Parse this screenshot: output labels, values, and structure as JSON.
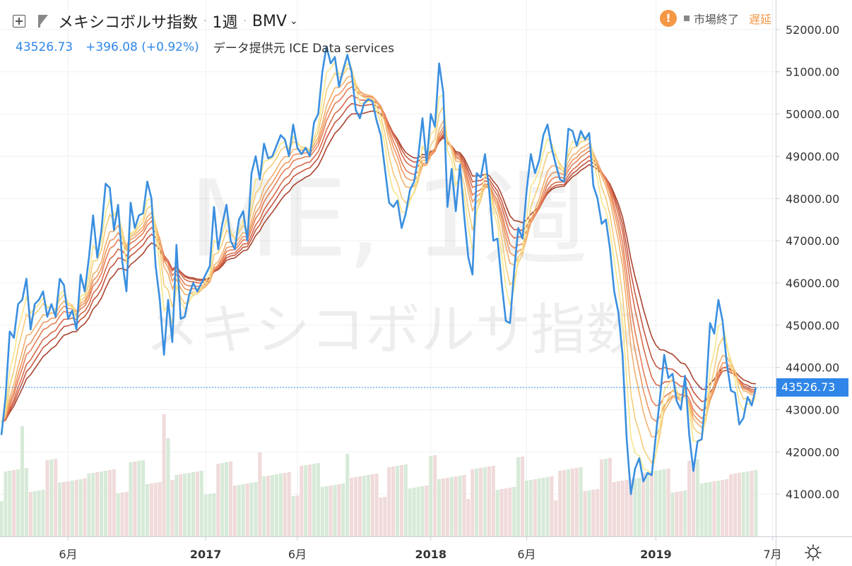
{
  "header": {
    "title": "メキシコボルサ指数",
    "interval": "1週",
    "exchange": "BMV",
    "last": "43526.73",
    "change": "+396.08",
    "change_pct": "(+0.92%)",
    "data_source": "データ提供元 ICE Data services",
    "market_status": "市場終了",
    "delay_label": "遅延"
  },
  "watermark": {
    "symbol": "ME, 1週",
    "name": "メキシコボルサ指数"
  },
  "colors": {
    "price_line": "#3a8fe0",
    "up_volume": "#d7ead8",
    "down_volume": "#f0dada",
    "ribbon": [
      "#f7e68a",
      "#f5cc78",
      "#f2b06c",
      "#ee9660",
      "#e57e55",
      "#d86a49",
      "#c65640",
      "#a8432e"
    ],
    "price_tag": "#2f86e8"
  },
  "chart_data": {
    "type": "line",
    "title": "メキシコボルサ指数",
    "ylim": [
      40000,
      52700
    ],
    "y_ticks": [
      "41000.00",
      "42000.00",
      "43000.00",
      "44000.00",
      "45000.00",
      "46000.00",
      "47000.00",
      "48000.00",
      "49000.00",
      "50000.00",
      "51000.00",
      "52000.00"
    ],
    "x_ticks": [
      {
        "label": "6月",
        "index": 16
      },
      {
        "label": "2017",
        "index": 49
      },
      {
        "label": "6月",
        "index": 71
      },
      {
        "label": "2018",
        "index": 103
      },
      {
        "label": "6月",
        "index": 126
      },
      {
        "label": "2019",
        "index": 157
      },
      {
        "label": "7月",
        "index": 185
      }
    ],
    "last_price": 43526.73,
    "last_price_label": "43526.73",
    "series": [
      {
        "values": [
          42400,
          43300,
          44850,
          44700,
          45500,
          45600,
          46100,
          44900,
          45500,
          45600,
          45800,
          45200,
          45500,
          45200,
          46100,
          45950,
          45150,
          45350,
          44900,
          46200,
          45800,
          46600,
          47600,
          46600,
          47250,
          48350,
          48250,
          47250,
          47850,
          46500,
          45800,
          47900,
          47300,
          47600,
          47650,
          48400,
          48000,
          46400,
          45600,
          44300,
          45600,
          44600,
          46900,
          45150,
          45200,
          45700,
          46000,
          45800,
          46000,
          46200,
          46400,
          47800,
          46800,
          47400,
          47850,
          47000,
          46800,
          47500,
          47700,
          47000,
          48600,
          49000,
          48450,
          49300,
          48950,
          49000,
          49250,
          49500,
          49400,
          49000,
          49750,
          49200,
          49050,
          49200,
          49000,
          49800,
          50000,
          51000,
          51600,
          51200,
          51350,
          50650,
          51050,
          51400,
          51000,
          50100,
          49900,
          50250,
          50350,
          50300,
          49850,
          49500,
          48700,
          47900,
          47800,
          47950,
          47300,
          47650,
          48200,
          48400,
          49000,
          49900,
          48850,
          50000,
          49700,
          51200,
          50500,
          47800,
          48700,
          47700,
          48800,
          47600,
          46600,
          46200,
          48600,
          48500,
          49050,
          48200,
          47000,
          47050,
          46000,
          45100,
          45050,
          46300,
          47300,
          47050,
          48200,
          49050,
          48600,
          48900,
          49500,
          49750,
          49200,
          48800,
          48450,
          48400,
          49650,
          49600,
          49250,
          49600,
          49400,
          49550,
          48300,
          48000,
          47400,
          47500,
          46800,
          45800,
          45300,
          44300,
          42300,
          41000,
          41600,
          41850,
          41300,
          41500,
          41450,
          42400,
          43300,
          44300,
          43750,
          43850,
          43200,
          43000,
          43800,
          42400,
          41550,
          42250,
          42300,
          43400,
          45050,
          44800,
          45600,
          45100,
          44100,
          43450,
          43400,
          42650,
          42800,
          43300,
          43100,
          43526
        ]
      }
    ]
  }
}
